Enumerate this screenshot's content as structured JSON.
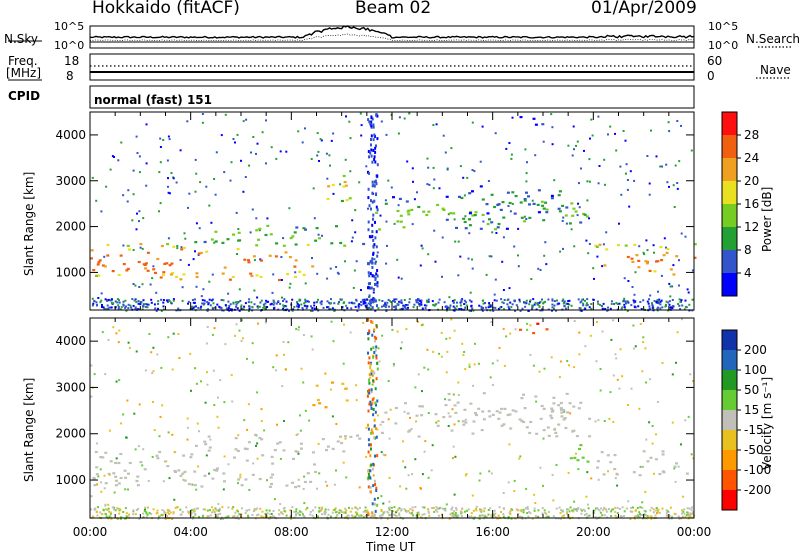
{
  "header": {
    "station": "Hokkaido (fitACF)",
    "beam": "Beam 02",
    "date": "01/Apr/2009"
  },
  "top_panel": {
    "left_label": "N.Sky",
    "left_ticks": [
      "10^5",
      "10^0"
    ],
    "right_label": "N.Search",
    "right_ticks": [
      "10^5",
      "10^0"
    ]
  },
  "freq_panel": {
    "left_label_1": "Freq.",
    "left_label_2": "[MHz]",
    "left_ticks": [
      "18",
      "8"
    ],
    "right_label": "Nave",
    "right_ticks": [
      "60",
      "0"
    ]
  },
  "cpid": {
    "label": "CPID",
    "value": "normal (fast) 151"
  },
  "colors": {
    "power": [
      "#0000ff",
      "#3355cc",
      "#22a033",
      "#77cc22",
      "#e8e020",
      "#f0a020",
      "#f06010",
      "#ff1010"
    ],
    "velocity": [
      "#ff0000",
      "#ff5500",
      "#ff9900",
      "#e8c020",
      "#c0c0b8",
      "#66cc33",
      "#229922",
      "#2266bb",
      "#1133aa"
    ]
  },
  "chart_data": [
    {
      "type": "heatmap",
      "title": "Power",
      "xlabel": "Time UT",
      "ylabel": "Slant Range [km]",
      "x_ticks": [
        "00:00",
        "04:00",
        "08:00",
        "12:00",
        "16:00",
        "20:00",
        "00:00"
      ],
      "y_ticks": [
        "1000",
        "2000",
        "3000",
        "4000"
      ],
      "ylim": [
        180,
        4500
      ],
      "colorbar_label": "Power [dB]",
      "colorbar_ticks": [
        "4",
        "8",
        "12",
        "16",
        "20",
        "24",
        "28"
      ],
      "regions": [
        {
          "t0": 0.0,
          "t1": 9.0,
          "r0": 850,
          "r1": 1650,
          "level": 28
        },
        {
          "t0": 4.0,
          "t1": 11.0,
          "r0": 1600,
          "r1": 2050,
          "level": 16
        },
        {
          "t0": 8.8,
          "t1": 10.3,
          "r0": 2550,
          "r1": 3150,
          "level": 24
        },
        {
          "t0": 11.3,
          "t1": 19.8,
          "r0": 1950,
          "r1": 2700,
          "level": 16
        },
        {
          "t0": 14.0,
          "t1": 19.0,
          "r0": 2300,
          "r1": 2900,
          "level": 12
        },
        {
          "t0": 20.0,
          "t1": 24.0,
          "r0": 950,
          "r1": 1650,
          "level": 28
        },
        {
          "t0": 17.0,
          "t1": 18.3,
          "r0": 4150,
          "r1": 4450,
          "level": 8
        }
      ]
    },
    {
      "type": "heatmap",
      "title": "Velocity",
      "xlabel": "Time UT",
      "ylabel": "Slant Range [km]",
      "x_ticks": [
        "00:00",
        "04:00",
        "08:00",
        "12:00",
        "16:00",
        "20:00",
        "00:00"
      ],
      "y_ticks": [
        "1000",
        "2000",
        "3000",
        "4000"
      ],
      "ylim": [
        180,
        4500
      ],
      "colorbar_label": "Velocity [m s⁻¹]",
      "colorbar_ticks": [
        "200",
        "100",
        "50",
        "15",
        "-15",
        "-50",
        "-100",
        "-200"
      ],
      "regions": [
        {
          "t0": 0.0,
          "t1": 9.0,
          "r0": 850,
          "r1": 1650,
          "level": 0
        },
        {
          "t0": 4.0,
          "t1": 11.0,
          "r0": 1600,
          "r1": 2050,
          "level": 0
        },
        {
          "t0": 8.8,
          "t1": 10.3,
          "r0": 2550,
          "r1": 3150,
          "level": -50
        },
        {
          "t0": 11.3,
          "t1": 19.8,
          "r0": 1950,
          "r1": 2700,
          "level": 0
        },
        {
          "t0": 14.0,
          "t1": 19.0,
          "r0": 2300,
          "r1": 2900,
          "level": 0
        },
        {
          "t0": 19.0,
          "t1": 20.0,
          "r0": 1400,
          "r1": 2000,
          "level": 30
        },
        {
          "t0": 20.0,
          "t1": 24.0,
          "r0": 1100,
          "r1": 1650,
          "level": 0
        },
        {
          "t0": 17.0,
          "t1": 18.3,
          "r0": 4150,
          "r1": 4450,
          "level": -200
        }
      ]
    }
  ]
}
